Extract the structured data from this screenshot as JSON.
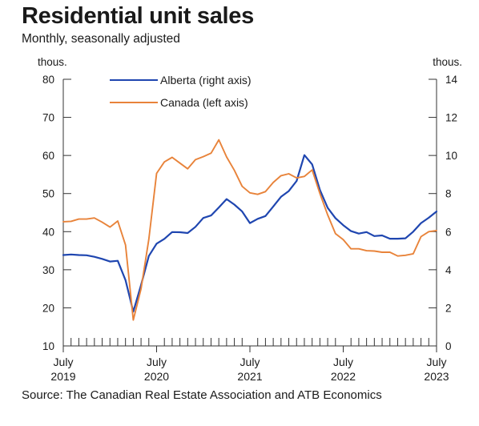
{
  "title": "Residential unit sales",
  "subtitle": "Monthly, seasonally adjusted",
  "source": "Source: The Canadian Real Estate Association and ATB Economics",
  "chart_data": {
    "type": "line",
    "left_axis": {
      "unit": "thous.",
      "range": [
        10,
        80
      ],
      "ticks": [
        10,
        20,
        30,
        40,
        50,
        60,
        70,
        80
      ]
    },
    "right_axis": {
      "unit": "thous.",
      "range": [
        0,
        14
      ],
      "ticks": [
        0,
        2,
        4,
        6,
        8,
        10,
        12,
        14
      ]
    },
    "x_axis": {
      "start": "2019-07",
      "end": "2023-07",
      "tick_labels": [
        {
          "index": 0,
          "line1": "July",
          "line2": "2019"
        },
        {
          "index": 12,
          "line1": "July",
          "line2": "2020"
        },
        {
          "index": 24,
          "line1": "July",
          "line2": "2021"
        },
        {
          "index": 36,
          "line1": "July",
          "line2": "2022"
        },
        {
          "index": 48,
          "line1": "July",
          "line2": "2023"
        }
      ]
    },
    "grid": false,
    "legend_placement": "top-left",
    "series": [
      {
        "name": "Alberta (right axis)",
        "axis": "right",
        "color": "#1f46b0",
        "values": [
          4.77,
          4.8,
          4.77,
          4.76,
          4.68,
          4.57,
          4.43,
          4.47,
          3.45,
          1.8,
          3.2,
          4.72,
          5.37,
          5.62,
          5.98,
          5.97,
          5.93,
          6.25,
          6.72,
          6.85,
          7.27,
          7.71,
          7.42,
          7.06,
          6.45,
          6.67,
          6.82,
          7.32,
          7.83,
          8.13,
          8.66,
          10.02,
          9.53,
          8.19,
          7.25,
          6.71,
          6.34,
          6.03,
          5.9,
          5.98,
          5.77,
          5.8,
          5.63,
          5.63,
          5.65,
          6.0,
          6.45,
          6.73,
          7.06
        ]
      },
      {
        "name": "Canada (left axis)",
        "axis": "left",
        "color": "#e8833a",
        "values": [
          42.6,
          42.7,
          43.3,
          43.3,
          43.6,
          42.5,
          41.2,
          42.8,
          36.5,
          16.8,
          25.0,
          38.0,
          55.3,
          58.3,
          59.5,
          58.0,
          56.5,
          58.9,
          59.7,
          60.6,
          64.1,
          59.6,
          56.1,
          51.9,
          50.2,
          49.8,
          50.5,
          52.9,
          54.7,
          55.2,
          54.1,
          54.5,
          56.2,
          50.0,
          44.4,
          39.5,
          37.9,
          35.5,
          35.5,
          35.0,
          34.9,
          34.6,
          34.6,
          33.6,
          33.8,
          34.2,
          38.7,
          40.0,
          40.3
        ]
      }
    ]
  }
}
